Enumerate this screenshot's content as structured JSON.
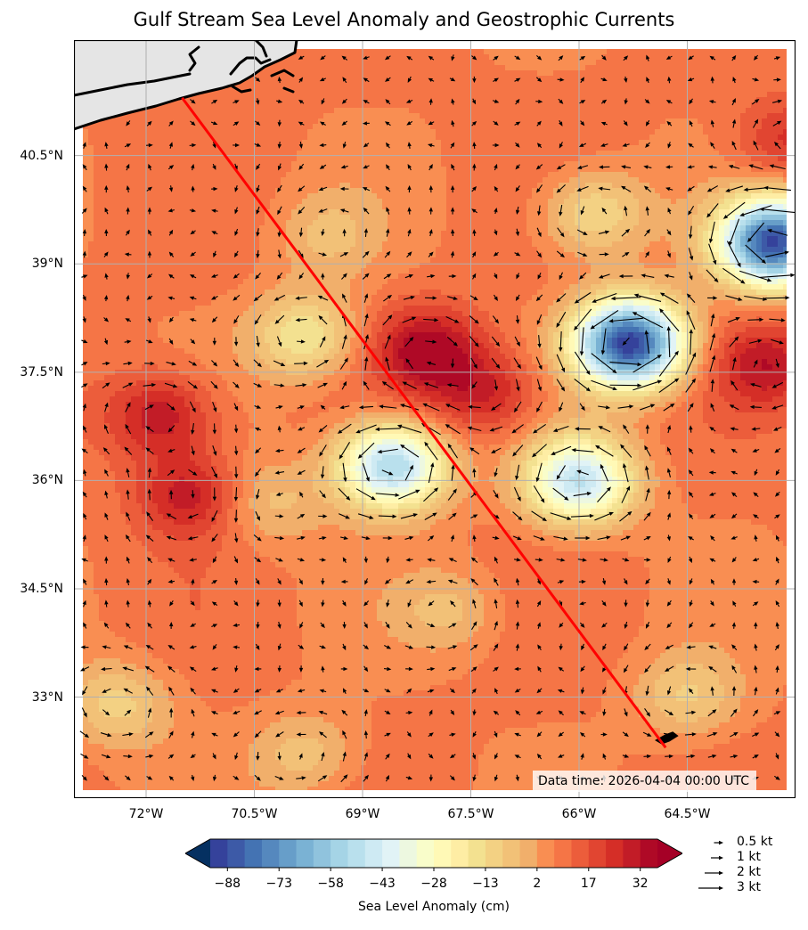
{
  "title": "Gulf Stream Sea Level Anomaly and Geostrophic Currents",
  "axes": {
    "lat_ticks": [
      "40.5°N",
      "39°N",
      "37.5°N",
      "36°N",
      "34.5°N",
      "33°N"
    ],
    "lon_ticks": [
      "72°W",
      "70.5°W",
      "69°W",
      "67.5°W",
      "66°W",
      "64.5°W"
    ],
    "lat_values": [
      40.5,
      39,
      37.5,
      36,
      34.5,
      33
    ],
    "lon_values": [
      -72,
      -70.5,
      -69,
      -67.5,
      -66,
      -64.5
    ],
    "lon_range": [
      -73,
      -63
    ],
    "lat_range": [
      31.6,
      42.1
    ],
    "gridlines": true
  },
  "data_time": "Data time: 2026-04-04 00:00 UTC",
  "colorbar": {
    "label": "Sea Level Anomaly (cm)",
    "ticks": [
      "−88",
      "−73",
      "−58",
      "−43",
      "−28",
      "−13",
      "2",
      "17",
      "32"
    ],
    "tick_values": [
      -88,
      -73,
      -58,
      -43,
      -28,
      -13,
      2,
      17,
      32
    ],
    "levels_min": -93,
    "levels_max": 37,
    "step": 5,
    "extend": "both",
    "colormap": "RdYlBu_r"
  },
  "legend": {
    "items": [
      {
        "label": "0.5 kt",
        "speed": 0.5
      },
      {
        "label": "1 kt",
        "speed": 1
      },
      {
        "label": "2 kt",
        "speed": 2
      },
      {
        "label": "3 kt",
        "speed": 3
      }
    ]
  },
  "track": {
    "color": "#ff0000",
    "start": {
      "lon": -71.5,
      "lat": 41.3
    },
    "end": {
      "lon": -64.8,
      "lat": 32.3
    }
  },
  "land_color": "#e5e5e5",
  "coast_color": "#000000",
  "chart_data": {
    "type": "heatmap",
    "title": "Gulf Stream Sea Level Anomaly and Geostrophic Currents",
    "xlabel": "",
    "ylabel": "",
    "colorbar_label": "Sea Level Anomaly (cm)",
    "features": [
      {
        "lon": -71.8,
        "lat": 36.9,
        "sla": 32
      },
      {
        "lon": -71.4,
        "lat": 35.8,
        "sla": 30
      },
      {
        "lon": -68.1,
        "lat": 37.8,
        "sla": 36
      },
      {
        "lon": -67.3,
        "lat": 37.2,
        "sla": 28
      },
      {
        "lon": -63.4,
        "lat": 37.6,
        "sla": 30
      },
      {
        "lon": -63.1,
        "lat": 40.7,
        "sla": 24
      },
      {
        "lon": -68.6,
        "lat": 36.2,
        "sla": -55
      },
      {
        "lon": -66.0,
        "lat": 36.0,
        "sla": -48
      },
      {
        "lon": -65.3,
        "lat": 37.9,
        "sla": -92
      },
      {
        "lon": -63.3,
        "lat": 39.3,
        "sla": -88
      },
      {
        "lon": -69.8,
        "lat": 38.0,
        "sla": -18
      },
      {
        "lon": -72.4,
        "lat": 32.9,
        "sla": -10
      },
      {
        "lon": -64.5,
        "lat": 33.0,
        "sla": -8
      },
      {
        "lon": -69.8,
        "lat": 32.2,
        "sla": -6
      },
      {
        "lon": -67.8,
        "lat": 34.2,
        "sla": -4
      },
      {
        "lon": -70.3,
        "lat": 35.7,
        "sla": -5
      },
      {
        "lon": -65.8,
        "lat": 39.7,
        "sla": -14
      },
      {
        "lon": -69.5,
        "lat": 39.4,
        "sla": -3
      }
    ],
    "background_sla": 8
  }
}
